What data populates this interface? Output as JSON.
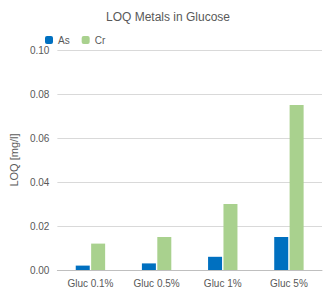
{
  "chart_data": {
    "type": "bar",
    "title": "LOQ Metals in Glucose",
    "y_label": "LOQ [mg/l]",
    "categories": [
      "Gluc 0.1%",
      "Gluc 0.5%",
      "Gluc 1%",
      "Gluc 5%"
    ],
    "series": [
      {
        "name": "As",
        "color": "#0070c0",
        "values": [
          0.002,
          0.003,
          0.006,
          0.015
        ]
      },
      {
        "name": "Cr",
        "color": "#a9d18e",
        "values": [
          0.012,
          0.015,
          0.03,
          0.075
        ]
      }
    ],
    "ylim": [
      0,
      0.1
    ],
    "yticks": [
      {
        "value": 0,
        "label": "0.00"
      },
      {
        "value": 0.02,
        "label": "0.02"
      },
      {
        "value": 0.04,
        "label": "0.04"
      },
      {
        "value": 0.06,
        "label": "0.06"
      },
      {
        "value": 0.08,
        "label": "0.08"
      },
      {
        "value": 0.1,
        "label": "0.10"
      }
    ],
    "grid": true,
    "legend": "top-left"
  }
}
